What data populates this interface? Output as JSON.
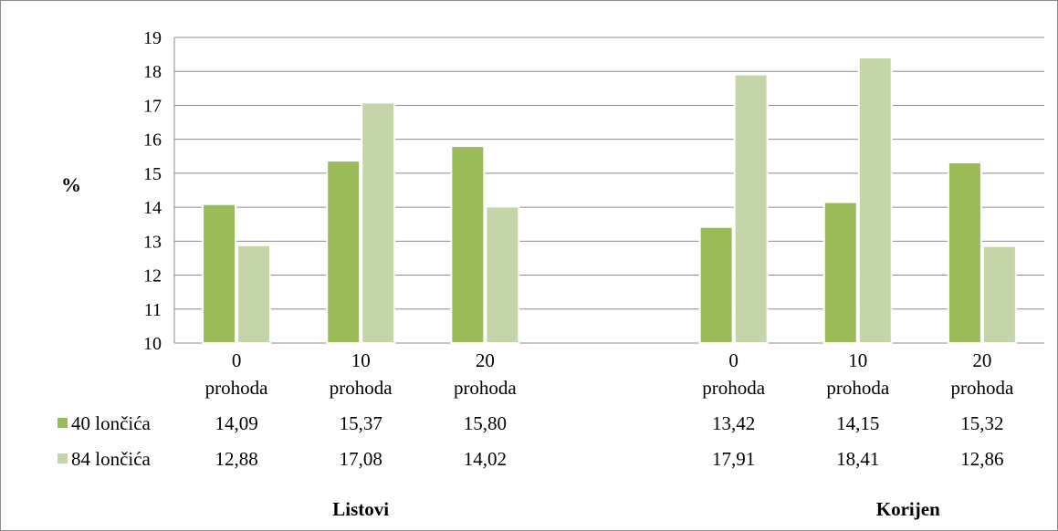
{
  "chart_data": {
    "type": "bar",
    "ylabel": "%",
    "ylim": [
      10,
      19
    ],
    "yticks": [
      "10",
      "11",
      "12",
      "13",
      "14",
      "15",
      "16",
      "17",
      "18",
      "19"
    ],
    "grid": true,
    "legend_position": "bottom data table",
    "categories": [
      {
        "line1": "0",
        "line2": "prohoda"
      },
      {
        "line1": "10",
        "line2": "prohoda"
      },
      {
        "line1": "20",
        "line2": "prohoda"
      },
      {
        "line1": "0",
        "line2": "prohoda"
      },
      {
        "line1": "10",
        "line2": "prohoda"
      },
      {
        "line1": "20",
        "line2": "prohoda"
      }
    ],
    "groups": [
      "Listovi",
      "Korijen"
    ],
    "series": [
      {
        "name": "40 lončića",
        "color": "#9bbb59",
        "values": [
          14.09,
          15.37,
          15.8,
          13.42,
          14.15,
          15.32
        ],
        "labels": [
          "14,09",
          "15,37",
          "15,80",
          "13,42",
          "14,15",
          "15,32"
        ]
      },
      {
        "name": "84 lončića",
        "color": "#c4d6a9",
        "values": [
          12.88,
          17.08,
          14.02,
          17.91,
          18.41,
          12.86
        ],
        "labels": [
          "12,88",
          "17,08",
          "14,02",
          "17,91",
          "18,41",
          "12,86"
        ]
      }
    ]
  }
}
